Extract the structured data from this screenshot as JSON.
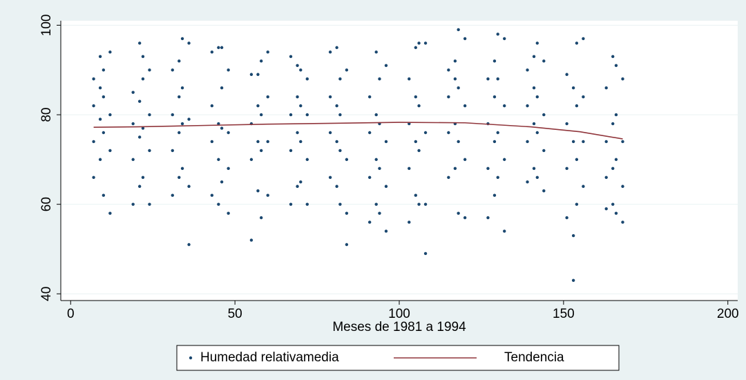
{
  "chart_data": {
    "type": "scatter",
    "xlabel": "Meses de 1981 a 1994",
    "xlim": [
      -3,
      203
    ],
    "xticks": [
      0,
      50,
      100,
      150,
      200
    ],
    "ylim": [
      38.5,
      101
    ],
    "yticks": [
      40,
      60,
      80,
      100
    ],
    "grid": true,
    "legend": "bottom",
    "series": [
      {
        "name": "Humedad relativamedia",
        "color": "#1a476f",
        "type": "scatter",
        "x": [
          7,
          7,
          7,
          7,
          9,
          9,
          9,
          9,
          10,
          10,
          10,
          10,
          12,
          12,
          12,
          12,
          19,
          19,
          19,
          19,
          21,
          21,
          21,
          21,
          22,
          22,
          22,
          22,
          24,
          24,
          24,
          24,
          31,
          31,
          31,
          31,
          33,
          33,
          33,
          33,
          34,
          34,
          34,
          34,
          36,
          36,
          36,
          36,
          43,
          43,
          43,
          43,
          45,
          45,
          45,
          45,
          46,
          46,
          46,
          46,
          48,
          48,
          48,
          48,
          55,
          55,
          55,
          55,
          57,
          57,
          57,
          57,
          58,
          58,
          58,
          58,
          60,
          60,
          60,
          60,
          67,
          67,
          67,
          67,
          69,
          69,
          69,
          69,
          70,
          70,
          70,
          70,
          72,
          72,
          72,
          72,
          79,
          79,
          79,
          79,
          81,
          81,
          81,
          81,
          82,
          82,
          82,
          82,
          84,
          84,
          84,
          84,
          91,
          91,
          91,
          91,
          93,
          93,
          93,
          93,
          94,
          94,
          94,
          94,
          96,
          96,
          96,
          96,
          103,
          103,
          103,
          103,
          105,
          105,
          105,
          105,
          106,
          106,
          106,
          106,
          108,
          108,
          108,
          108,
          115,
          115,
          115,
          115,
          117,
          117,
          117,
          117,
          118,
          118,
          118,
          118,
          120,
          120,
          120,
          120,
          127,
          127,
          127,
          127,
          129,
          129,
          129,
          129,
          130,
          130,
          130,
          130,
          132,
          132,
          132,
          132,
          139,
          139,
          139,
          139,
          141,
          141,
          141,
          141,
          142,
          142,
          142,
          142,
          144,
          144,
          144,
          144,
          151,
          151,
          151,
          151,
          153,
          153,
          153,
          153,
          154,
          154,
          154,
          154,
          156,
          156,
          156,
          156,
          163,
          163,
          163,
          163,
          165,
          165,
          165,
          165,
          166,
          166,
          166,
          166,
          168,
          168,
          168,
          168
        ],
        "values": [
          66,
          74,
          82,
          88,
          70,
          79,
          86,
          93,
          62,
          76,
          84,
          90,
          58,
          72,
          80,
          94,
          60,
          70,
          78,
          85,
          64,
          75,
          83,
          96,
          66,
          77,
          88,
          93,
          60,
          72,
          80,
          90,
          62,
          72,
          80,
          90,
          66,
          76,
          84,
          92,
          68,
          78,
          86,
          97,
          51,
          64,
          79,
          96,
          62,
          74,
          82,
          94,
          60,
          70,
          78,
          95,
          65,
          77,
          86,
          95,
          58,
          68,
          76,
          90,
          52,
          70,
          78,
          89,
          63,
          74,
          82,
          89,
          57,
          72,
          80,
          92,
          62,
          74,
          84,
          94,
          60,
          72,
          80,
          93,
          64,
          76,
          84,
          91,
          65,
          74,
          82,
          90,
          60,
          70,
          80,
          88,
          66,
          76,
          84,
          94,
          64,
          74,
          82,
          95,
          60,
          72,
          80,
          88,
          51,
          58,
          70,
          90,
          56,
          66,
          76,
          84,
          60,
          70,
          80,
          94,
          58,
          68,
          78,
          88,
          54,
          64,
          74,
          91,
          56,
          68,
          78,
          88,
          62,
          74,
          84,
          95,
          60,
          72,
          82,
          96,
          49,
          60,
          76,
          96,
          66,
          76,
          84,
          90,
          68,
          78,
          88,
          92,
          58,
          74,
          86,
          99,
          57,
          70,
          82,
          97,
          57,
          68,
          78,
          88,
          62,
          74,
          84,
          92,
          66,
          76,
          88,
          98,
          54,
          70,
          82,
          97,
          65,
          74,
          82,
          90,
          68,
          78,
          86,
          93,
          66,
          76,
          84,
          96,
          63,
          72,
          80,
          92,
          57,
          68,
          78,
          89,
          43,
          53,
          74,
          86,
          60,
          70,
          82,
          96,
          64,
          74,
          84,
          97,
          59,
          66,
          74,
          86,
          60,
          68,
          78,
          93,
          58,
          70,
          80,
          91,
          56,
          64,
          74,
          88
        ]
      },
      {
        "name": "Tendencia",
        "color": "#90353b",
        "type": "line",
        "x": [
          7,
          20,
          40,
          60,
          80,
          100,
          120,
          140,
          155,
          168
        ],
        "values": [
          77.2,
          77.3,
          77.6,
          77.9,
          78.1,
          78.3,
          78.2,
          77.3,
          76.2,
          74.6
        ]
      }
    ]
  }
}
